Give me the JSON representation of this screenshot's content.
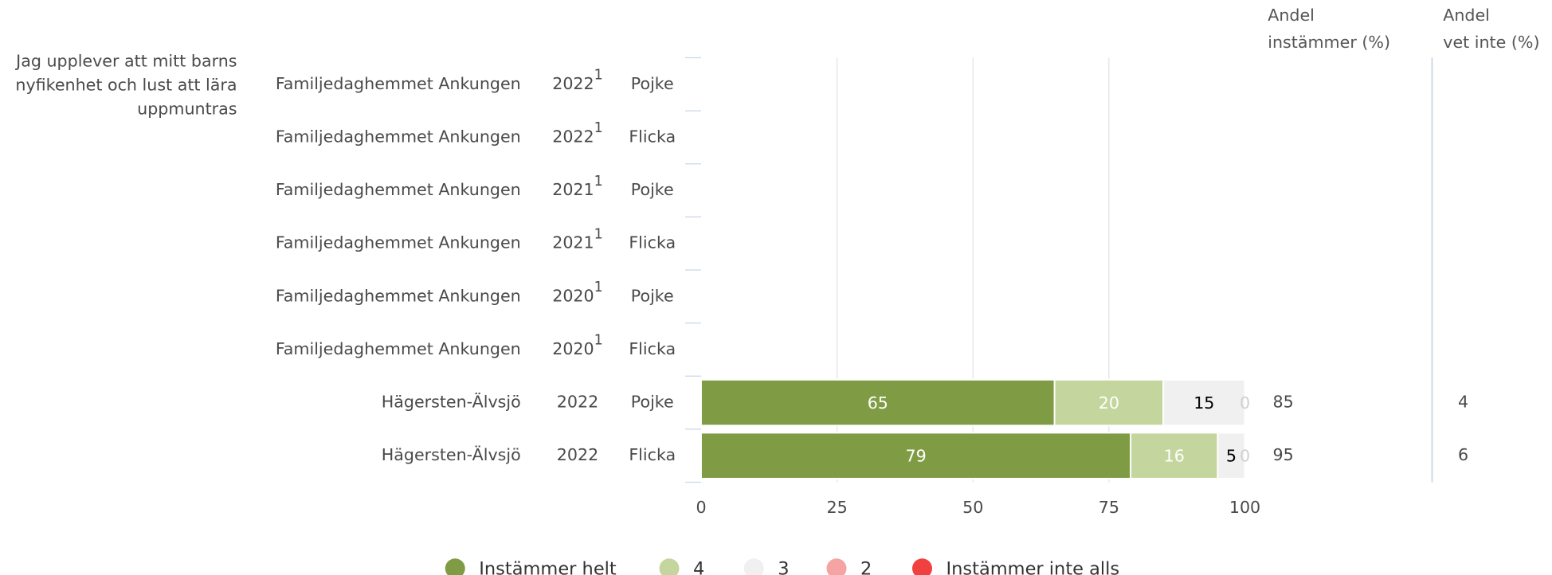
{
  "chart_data": {
    "type": "stacked_barh",
    "question": [
      "Jag upplever att mitt barns",
      "nyfikenhet och lust att lära",
      "uppmuntras"
    ],
    "categories": [
      "Familjedaghemmet Ankungen",
      "Familjedaghemmet Ankungen",
      "Familjedaghemmet Ankungen",
      "Familjedaghemmet Ankungen",
      "Familjedaghemmet Ankungen",
      "Familjedaghemmet Ankungen",
      "Hägersten-Älvsjö",
      "Hägersten-Älvsjö"
    ],
    "years": [
      "2022",
      "2022",
      "2021",
      "2021",
      "2020",
      "2020",
      "2022",
      "2022"
    ],
    "year_notes": [
      "1",
      "1",
      "1",
      "1",
      "1",
      "1",
      null,
      null
    ],
    "genders": [
      "Pojke",
      "Flicka",
      "Pojke",
      "Flicka",
      "Pojke",
      "Flicka",
      "Pojke",
      "Flicka"
    ],
    "series": [
      {
        "name": "Instämmer helt",
        "color": "#7f9c44",
        "label_color": "#ffffff",
        "values": [
          null,
          null,
          null,
          null,
          null,
          null,
          65,
          79
        ]
      },
      {
        "name": "4",
        "color": "#c4d69d",
        "label_color": "#ffffff",
        "values": [
          null,
          null,
          null,
          null,
          null,
          null,
          20,
          16
        ]
      },
      {
        "name": "3",
        "color": "#f0f0f0",
        "label_color": "#000000",
        "values": [
          null,
          null,
          null,
          null,
          null,
          null,
          15,
          5
        ]
      },
      {
        "name": "2",
        "color": "#f5a3a3",
        "label_color": "#d0d0d0",
        "values": [
          null,
          null,
          null,
          null,
          null,
          null,
          0,
          0
        ]
      },
      {
        "name": "Instämmer inte alls",
        "color": "#f0403f",
        "label_color": "#ffffff",
        "values": [
          null,
          null,
          null,
          null,
          null,
          null,
          null,
          null
        ]
      }
    ],
    "columns": [
      {
        "title": [
          "Andel",
          "instämmer (%)"
        ],
        "values": [
          null,
          null,
          null,
          null,
          null,
          null,
          85,
          95
        ]
      },
      {
        "title": [
          "Andel",
          "vet inte (%)"
        ],
        "values": [
          null,
          null,
          null,
          null,
          null,
          null,
          4,
          6
        ]
      }
    ],
    "xlim": [
      0,
      100
    ],
    "xticks": [
      0,
      25,
      50,
      75,
      100
    ],
    "grid": true
  }
}
